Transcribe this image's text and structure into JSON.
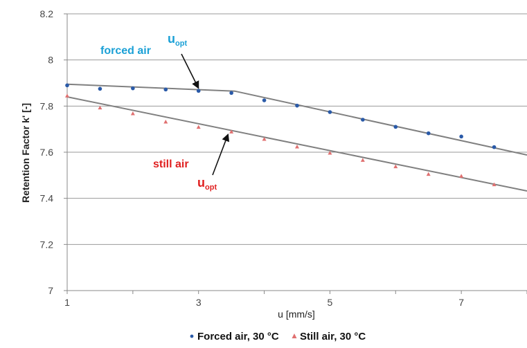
{
  "chart_data": {
    "type": "scatter",
    "xlabel": "u [mm/s]",
    "ylabel": "Retention Factor k' [-]",
    "xlim": [
      1,
      8
    ],
    "ylim": [
      7,
      8.2
    ],
    "x_ticks": [
      1,
      3,
      5,
      7
    ],
    "x_tick_labels": [
      "1",
      "3",
      "5",
      "7"
    ],
    "y_ticks": [
      7,
      7.2,
      7.4,
      7.6,
      7.8,
      8,
      8.2
    ],
    "y_tick_labels": [
      "7",
      "7.2",
      "7.4",
      "7.6",
      "7.8",
      "8",
      "8.2"
    ],
    "grid": "horizontal",
    "legend_position": "bottom",
    "series": [
      {
        "name": "Forced air, 30 °C",
        "color": "#2a5aa8",
        "marker": "circle",
        "x": [
          1,
          1.5,
          2,
          2.5,
          3,
          3.5,
          4,
          4.5,
          5,
          5.5,
          6,
          6.5,
          7,
          7.5
        ],
        "y": [
          7.89,
          7.875,
          7.877,
          7.872,
          7.866,
          7.857,
          7.825,
          7.802,
          7.774,
          7.741,
          7.71,
          7.682,
          7.668,
          7.622
        ]
      },
      {
        "name": "Still air, 30 °C",
        "color": "#e07070",
        "marker": "triangle",
        "x": [
          1,
          1.5,
          2,
          2.5,
          3,
          3.5,
          4,
          4.5,
          5,
          5.5,
          6,
          6.5,
          7,
          7.5
        ],
        "y": [
          7.845,
          7.793,
          7.768,
          7.732,
          7.709,
          7.689,
          7.657,
          7.624,
          7.597,
          7.566,
          7.538,
          7.505,
          7.497,
          7.46
        ]
      }
    ],
    "fit_lines": [
      {
        "points": [
          [
            1,
            7.895
          ],
          [
            3.55,
            7.865
          ],
          [
            8,
            7.588
          ]
        ]
      },
      {
        "points": [
          [
            1,
            7.84
          ],
          [
            8,
            7.432
          ]
        ]
      }
    ],
    "annotations": {
      "forced": {
        "label": "forced air",
        "color": "#1aa0d6",
        "u_main": "u",
        "u_sub": "opt",
        "arrow_to": [
          3,
          7.865
        ]
      },
      "still": {
        "label": "still air",
        "color": "#e02020",
        "u_main": "u",
        "u_sub": "opt",
        "arrow_to": [
          3.45,
          7.69
        ]
      }
    }
  }
}
